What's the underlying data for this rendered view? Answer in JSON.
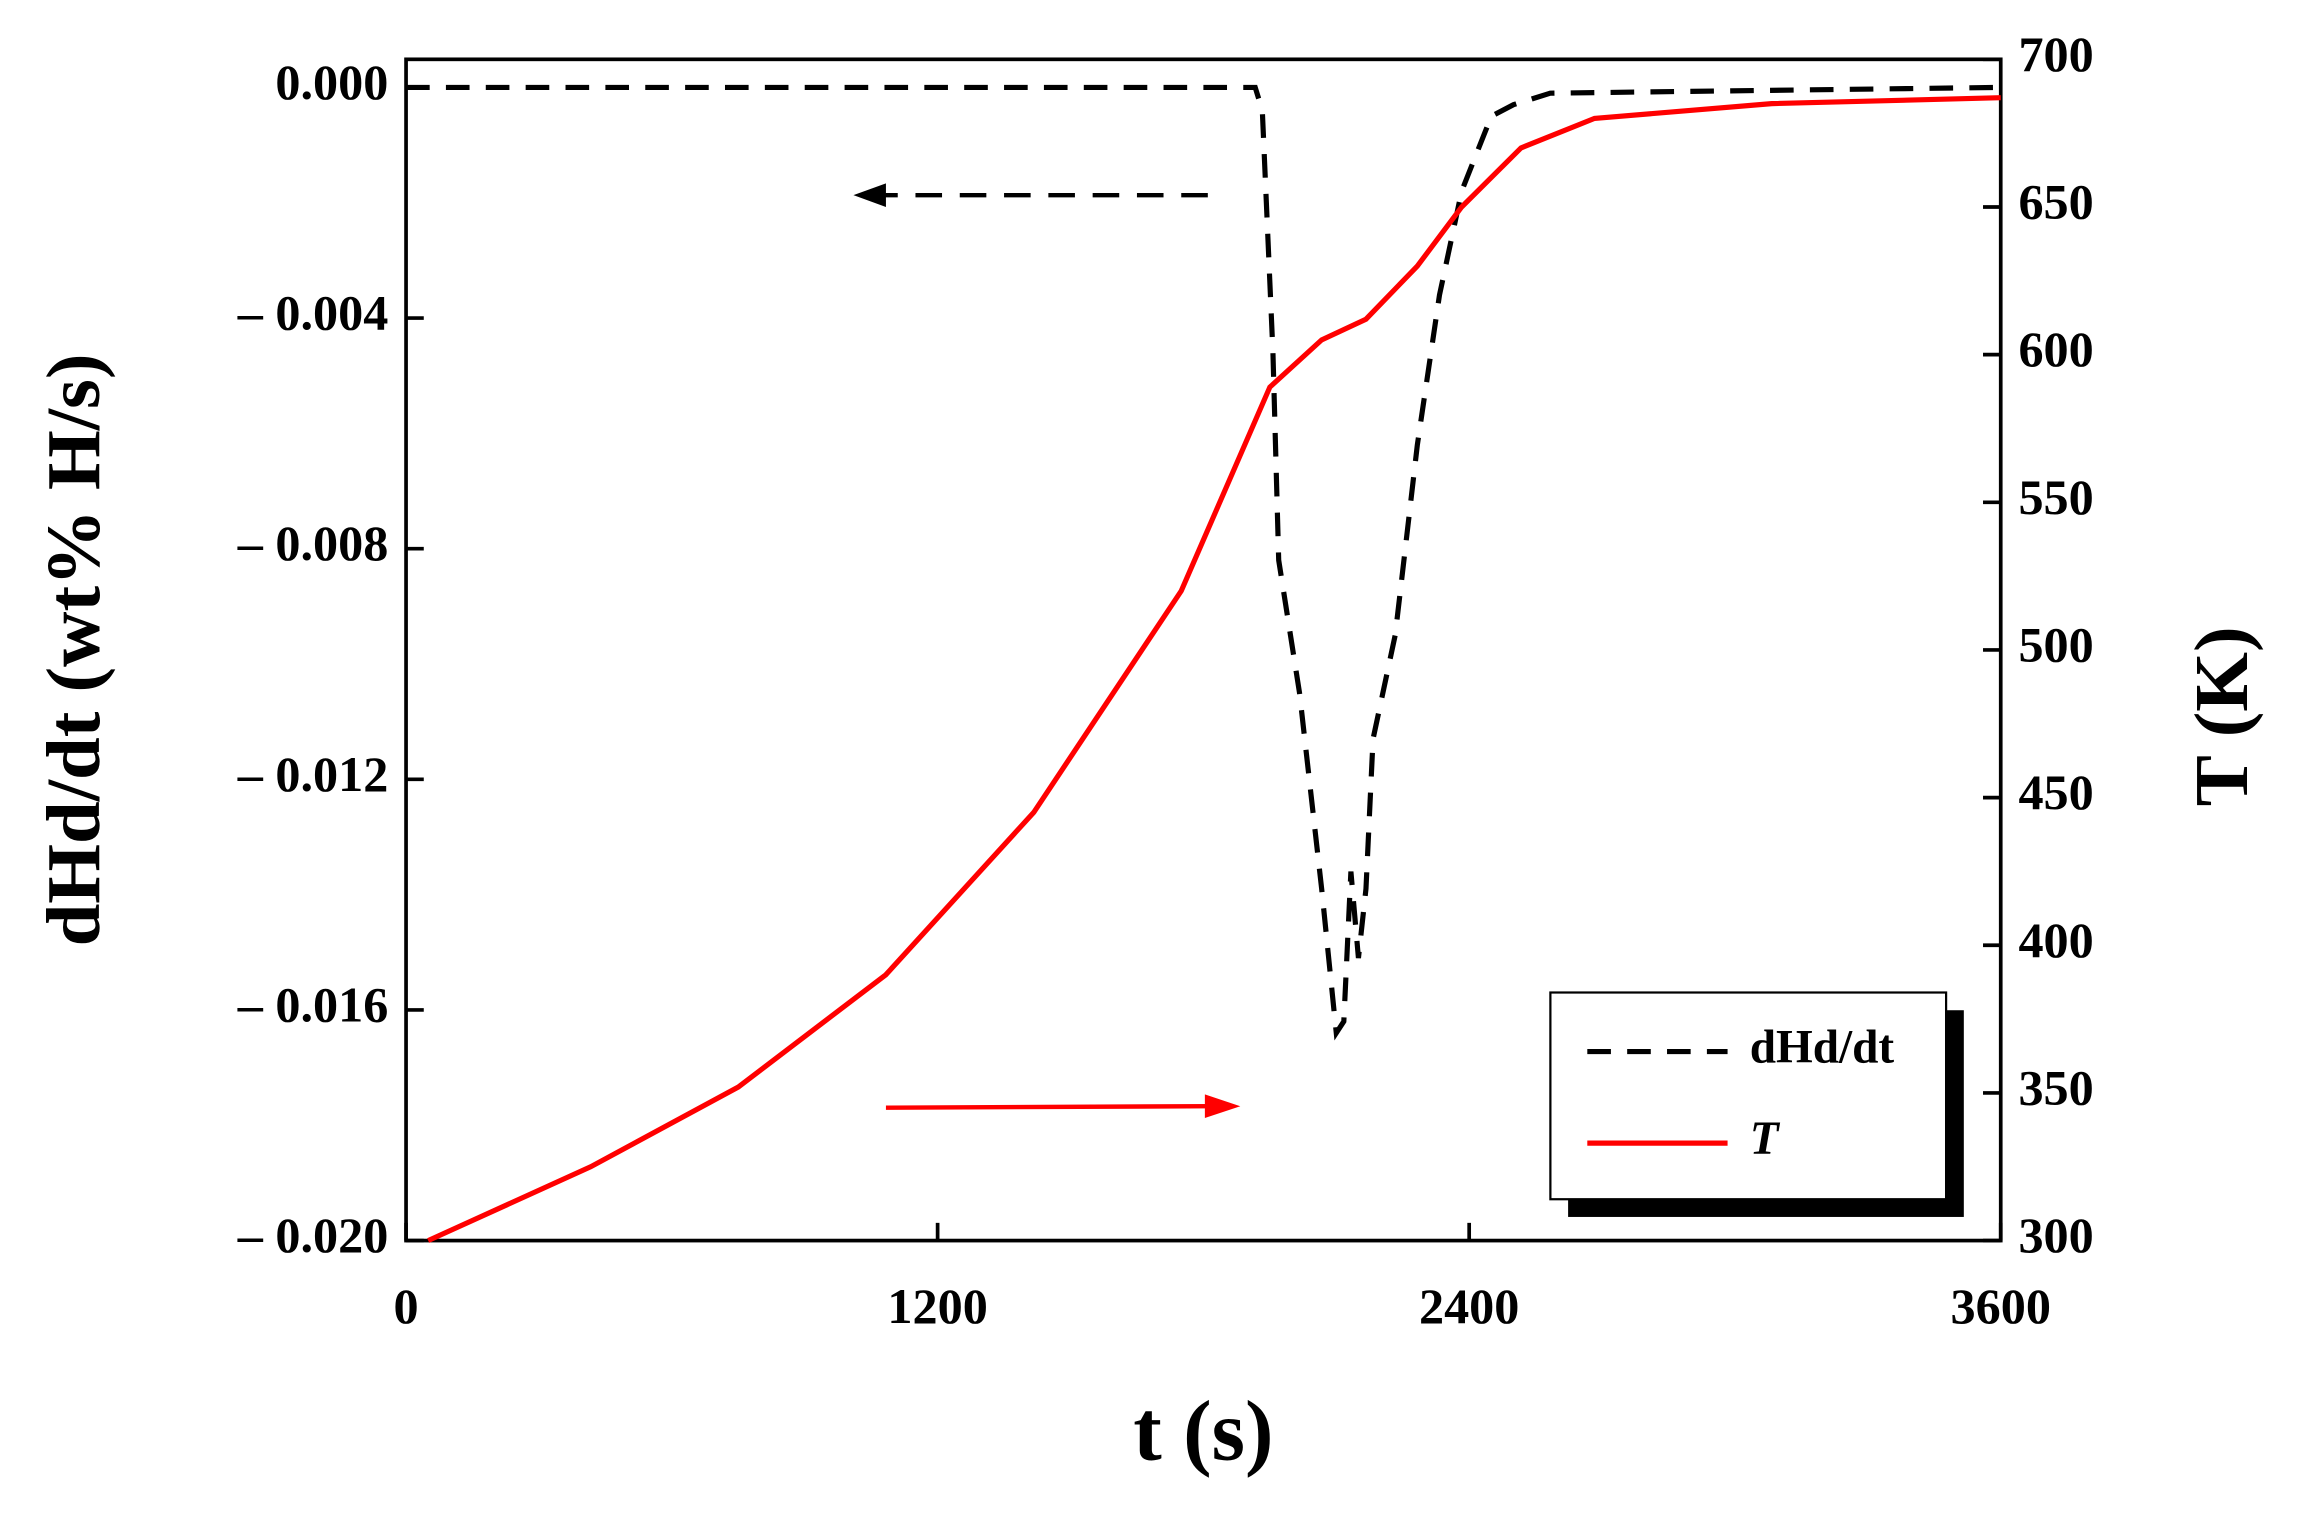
{
  "chart_data": {
    "type": "line",
    "xlabel": "t (s)",
    "ylabel": "dHd/dt (wt% H/s)",
    "y2label": "T (K)",
    "xlim": [
      0,
      3600
    ],
    "xticks": [
      0,
      1200,
      2400,
      3600
    ],
    "ylim": [
      -0.02,
      0.000487
    ],
    "yticks": [
      {
        "value": 0,
        "label": "0.000"
      },
      {
        "value": -0.004,
        "label": "– 0.004"
      },
      {
        "value": -0.008,
        "label": "– 0.008"
      },
      {
        "value": -0.012,
        "label": "– 0.012"
      },
      {
        "value": -0.016,
        "label": "– 0.016"
      },
      {
        "value": -0.02,
        "label": "– 0.020"
      }
    ],
    "y2lim": [
      300,
      700
    ],
    "y2ticks": [
      300,
      350,
      400,
      450,
      500,
      550,
      600,
      650,
      700
    ],
    "legend": "lower right",
    "series": [
      {
        "name": "dHd/dt",
        "color": "#000000",
        "dash": true,
        "x": [
          0,
          1917,
          1933,
          1957,
          1970,
          2017,
          2067,
          2100,
          2117,
          2133,
          2150,
          2167,
          2183,
          2233,
          2283,
          2333,
          2383,
          2450,
          2500,
          2583,
          3600
        ],
        "values": [
          0,
          0,
          -0.0004,
          -0.0046,
          -0.0082,
          -0.0105,
          -0.0139,
          -0.0164,
          -0.0162,
          -0.0136,
          -0.0151,
          -0.0139,
          -0.0113,
          -0.0095,
          -0.0062,
          -0.0036,
          -0.0018,
          -0.0005,
          -0.0003,
          -0.0001,
          0
        ]
      },
      {
        "name": "T",
        "color": "#ff0000",
        "axis": "y2",
        "x": [
          50,
          417,
          750,
          1083,
          1417,
          1750,
          1950,
          2067,
          2167,
          2283,
          2383,
          2517,
          2683,
          3083,
          3600
        ],
        "values": [
          300,
          325,
          352,
          390,
          445,
          520,
          589,
          605,
          612,
          630,
          650,
          670,
          680,
          685,
          687
        ]
      }
    ]
  }
}
